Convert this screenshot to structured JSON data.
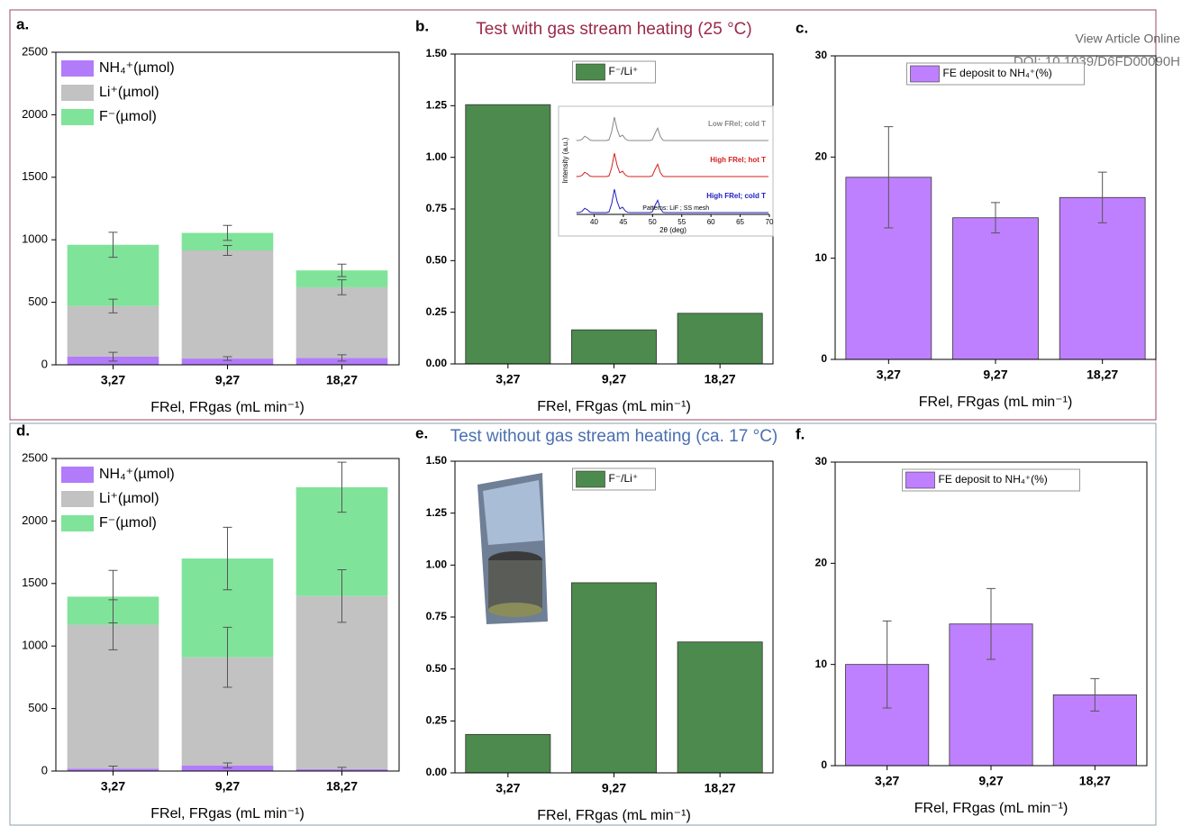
{
  "header": {
    "link": "View Article Online",
    "doi": "DOI: 10.1039/D6FD00090H"
  },
  "chart_data": [
    {
      "type": "stacked_bar",
      "panel": "a.",
      "categories": [
        "3,27",
        "9,27",
        "18,27"
      ],
      "xlabel": "FRel, FRgas (mL min⁻¹)",
      "ylim": [
        0,
        2500
      ],
      "yticks": [
        0,
        500,
        1000,
        1500,
        2000,
        2500
      ],
      "legend": "upper left",
      "series": [
        {
          "name": "NH₄⁺(µmol)",
          "color": "#b27bfa",
          "values": [
            65,
            50,
            55
          ],
          "errors": [
            35,
            15,
            25
          ]
        },
        {
          "name": "Li⁺(µmol)",
          "color": "#c2c2c2",
          "values": [
            405,
            865,
            565
          ],
          "errors": [
            55,
            40,
            60
          ]
        },
        {
          "name": "F⁻(µmol)",
          "color": "#80e39a",
          "values": [
            490,
            140,
            135
          ],
          "errors": [
            100,
            60,
            50
          ]
        }
      ]
    },
    {
      "type": "bar",
      "panel": "b.",
      "title": "Test with gas stream heating (25 °C)",
      "title_color": "#9b2a4a",
      "categories": [
        "3,27",
        "9,27",
        "18,27"
      ],
      "xlabel": "FRel, FRgas (mL min⁻¹)",
      "ylim": [
        0,
        1.5
      ],
      "yticks": [
        {
          "value": 0,
          "label": "0.00"
        },
        {
          "value": 0.25,
          "label": "0.25"
        },
        {
          "value": 0.5,
          "label": "0.50"
        },
        {
          "value": 0.75,
          "label": "0.75"
        },
        {
          "value": 1,
          "label": "1.00"
        },
        {
          "value": 1.25,
          "label": "1.25"
        },
        {
          "value": 1.5,
          "label": "1.50"
        }
      ],
      "legend": "upper center",
      "series": [
        {
          "name": "F⁻/Li⁺",
          "color": "#4d8a4d",
          "values": [
            1.255,
            0.165,
            0.245
          ]
        }
      ],
      "inset": {
        "xlabel": "2θ (deg)",
        "ylabel": "Intensity (a.u.)",
        "xlim": [
          37,
          70
        ],
        "xticks": [
          40,
          45,
          50,
          55,
          60,
          65,
          70
        ],
        "labels": [
          {
            "text": "Low FRel; cold T",
            "color": "#888888"
          },
          {
            "text": "High FRel; hot T",
            "color": "#d62020"
          },
          {
            "text": "High FRel; cold T",
            "color": "#2020c0"
          }
        ],
        "patterns": "Patterns: LiF ; SS mesh"
      }
    },
    {
      "type": "bar",
      "panel": "c.",
      "categories": [
        "3,27",
        "9,27",
        "18,27"
      ],
      "xlabel": "FRel, FRgas (mL min⁻¹)",
      "ylim": [
        0,
        30
      ],
      "yticks": [
        0,
        10,
        20,
        30
      ],
      "legend": "upper center",
      "series": [
        {
          "name": "FE deposit to NH₄⁺(%)",
          "color": "#bf80ff",
          "values": [
            18,
            14,
            16
          ],
          "errors": [
            5,
            1.5,
            2.5
          ]
        }
      ]
    },
    {
      "type": "stacked_bar",
      "panel": "d.",
      "categories": [
        "3,27",
        "9,27",
        "18,27"
      ],
      "xlabel": "FRel, FRgas (mL min⁻¹)",
      "ylim": [
        0,
        2500
      ],
      "yticks": [
        0,
        500,
        1000,
        1500,
        2000,
        2500
      ],
      "legend": "upper left",
      "series": [
        {
          "name": "NH₄⁺(µmol)",
          "color": "#b27bfa",
          "values": [
            20,
            45,
            15
          ],
          "errors": [
            20,
            20,
            15
          ]
        },
        {
          "name": "Li⁺(µmol)",
          "color": "#c2c2c2",
          "values": [
            1150,
            865,
            1385
          ],
          "errors": [
            200,
            240,
            210
          ]
        },
        {
          "name": "F⁻(µmol)",
          "color": "#80e39a",
          "values": [
            225,
            790,
            870
          ],
          "errors": [
            210,
            250,
            200
          ]
        }
      ]
    },
    {
      "type": "bar",
      "panel": "e.",
      "title": "Test without gas stream heating (ca. 17 °C)",
      "title_color": "#4a6fb0",
      "categories": [
        "3,27",
        "9,27",
        "18,27"
      ],
      "xlabel": "FRel, FRgas (mL min⁻¹)",
      "ylim": [
        0,
        1.5
      ],
      "yticks": [
        {
          "value": 0,
          "label": "0.00"
        },
        {
          "value": 0.25,
          "label": "0.25"
        },
        {
          "value": 0.5,
          "label": "0.50"
        },
        {
          "value": 0.75,
          "label": "0.75"
        },
        {
          "value": 1,
          "label": "1.00"
        },
        {
          "value": 1.25,
          "label": "1.25"
        },
        {
          "value": 1.5,
          "label": "1.50"
        }
      ],
      "legend": "upper center",
      "series": [
        {
          "name": "F⁻/Li⁺",
          "color": "#4d8a4d",
          "values": [
            0.185,
            0.915,
            0.63
          ]
        }
      ]
    },
    {
      "type": "bar",
      "panel": "f.",
      "categories": [
        "3,27",
        "9,27",
        "18,27"
      ],
      "xlabel": "FRel, FRgas (mL min⁻¹)",
      "ylim": [
        0,
        30
      ],
      "yticks": [
        0,
        10,
        20,
        30
      ],
      "legend": "upper center",
      "series": [
        {
          "name": "FE deposit to NH₄⁺(%)",
          "color": "#bf80ff",
          "values": [
            10,
            14,
            7
          ],
          "errors": [
            4.3,
            3.5,
            1.6
          ]
        }
      ]
    }
  ]
}
